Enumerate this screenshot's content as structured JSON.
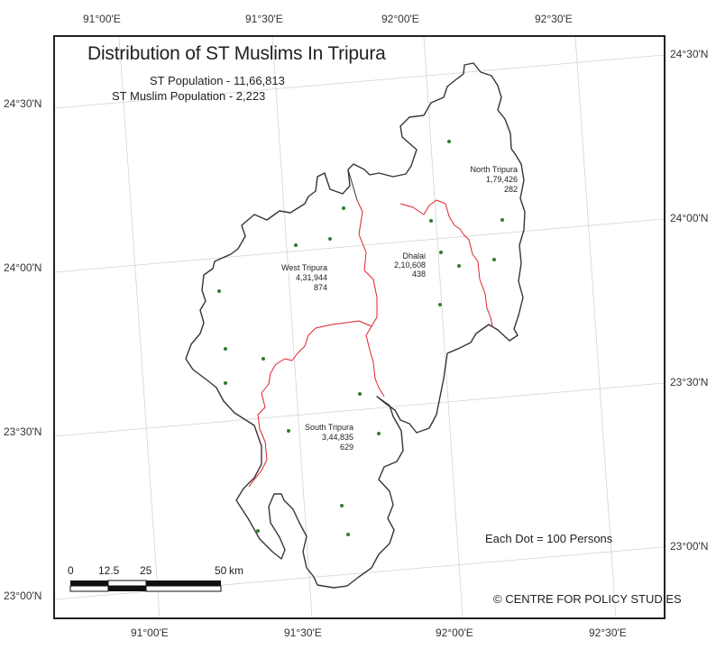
{
  "title": "Distribution of ST Muslims In Tripura",
  "summary": {
    "st_population": "ST Population - 11,66,813",
    "st_muslim_population": "ST Muslim Population - 2,223"
  },
  "graticule": {
    "top_longitudes": [
      "91°00'E",
      "91°30'E",
      "92°00'E",
      "92°30'E"
    ],
    "bottom_longitudes": [
      "91°00'E",
      "91°30'E",
      "92°00'E",
      "92°30'E"
    ],
    "left_latitudes": [
      "24°30'N",
      "24°00'N",
      "23°30'N",
      "23°00'N"
    ],
    "right_latitudes": [
      "24°30'N",
      "24°00'N",
      "23°30'N",
      "23°00'N"
    ]
  },
  "districts": [
    {
      "name": "North Tripura",
      "population": "1,79,426",
      "st_muslims": "282"
    },
    {
      "name": "Dhalai",
      "population": "2,10,608",
      "st_muslims": "438"
    },
    {
      "name": "West Tripura",
      "population": "4,31,944",
      "st_muslims": "874"
    },
    {
      "name": "South Tripura",
      "population": "3,44,835",
      "st_muslims": "629"
    }
  ],
  "dot_note": "Each Dot = 100 Persons",
  "scale_bar": {
    "labels": [
      "0",
      "12.5",
      "25",
      "50"
    ],
    "unit": "km"
  },
  "credit": "© CENTRE FOR POLICY STUDIES",
  "colors": {
    "state_border": "#3b3238",
    "district_border": "#e0202a",
    "dot": "#2e7d32",
    "graticule": "#d4d4d4",
    "frame": "#222222"
  }
}
